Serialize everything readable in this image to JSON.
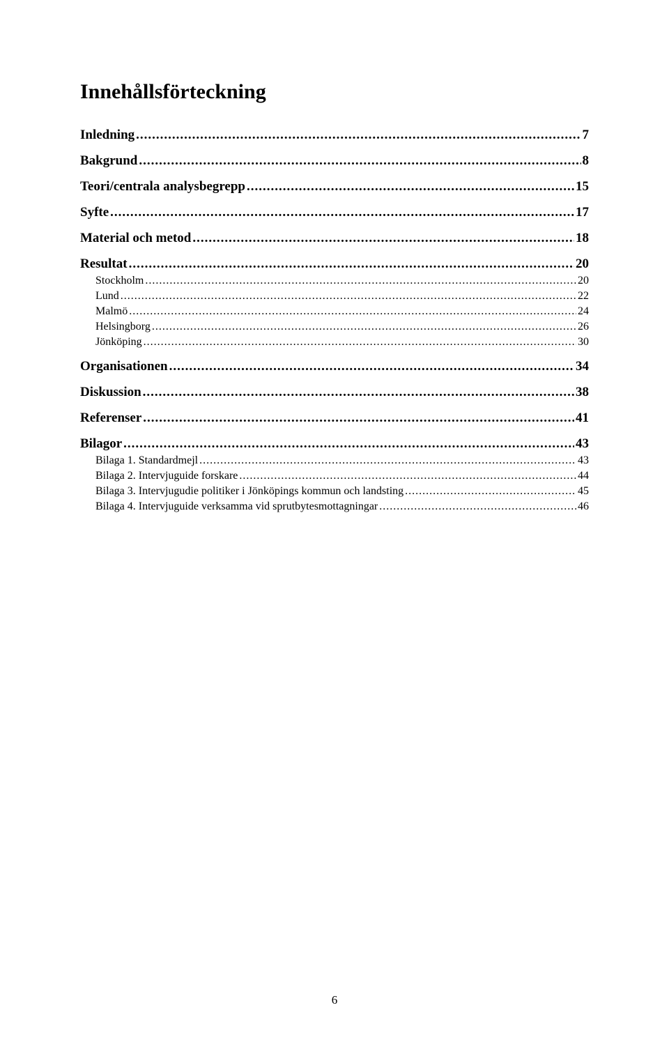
{
  "title": "Innehållsförteckning",
  "entries": [
    {
      "level": 1,
      "label": "Inledning",
      "page": "7"
    },
    {
      "level": 1,
      "label": "Bakgrund",
      "page": "8"
    },
    {
      "level": 1,
      "label": "Teori/centrala analysbegrepp",
      "page": "15"
    },
    {
      "level": 1,
      "label": "Syfte",
      "page": "17"
    },
    {
      "level": 1,
      "label": "Material och metod",
      "page": "18"
    },
    {
      "level": 1,
      "label": "Resultat",
      "page": "20"
    },
    {
      "level": 2,
      "label": "Stockholm",
      "page": "20"
    },
    {
      "level": 2,
      "label": "Lund",
      "page": "22"
    },
    {
      "level": 2,
      "label": "Malmö",
      "page": "24"
    },
    {
      "level": 2,
      "label": "Helsingborg",
      "page": "26"
    },
    {
      "level": 2,
      "label": "Jönköping",
      "page": "30"
    },
    {
      "level": 1,
      "label": "Organisationen",
      "page": "34"
    },
    {
      "level": 1,
      "label": "Diskussion",
      "page": "38"
    },
    {
      "level": 1,
      "label": "Referenser",
      "page": "41"
    },
    {
      "level": 1,
      "label": "Bilagor",
      "page": "43"
    },
    {
      "level": 2,
      "label": "Bilaga 1. Standardmejl",
      "page": "43"
    },
    {
      "level": 2,
      "label": "Bilaga 2. Intervjuguide forskare",
      "page": "44"
    },
    {
      "level": 2,
      "label": "Bilaga 3. Intervjugudie politiker i Jönköpings kommun och landsting",
      "page": "45"
    },
    {
      "level": 2,
      "label": "Bilaga 4. Intervjuguide verksamma vid sprutbytesmottagningar",
      "page": "46"
    }
  ],
  "dots": "............................................................................................................................................................................................................................................................",
  "pageNumber": "6"
}
